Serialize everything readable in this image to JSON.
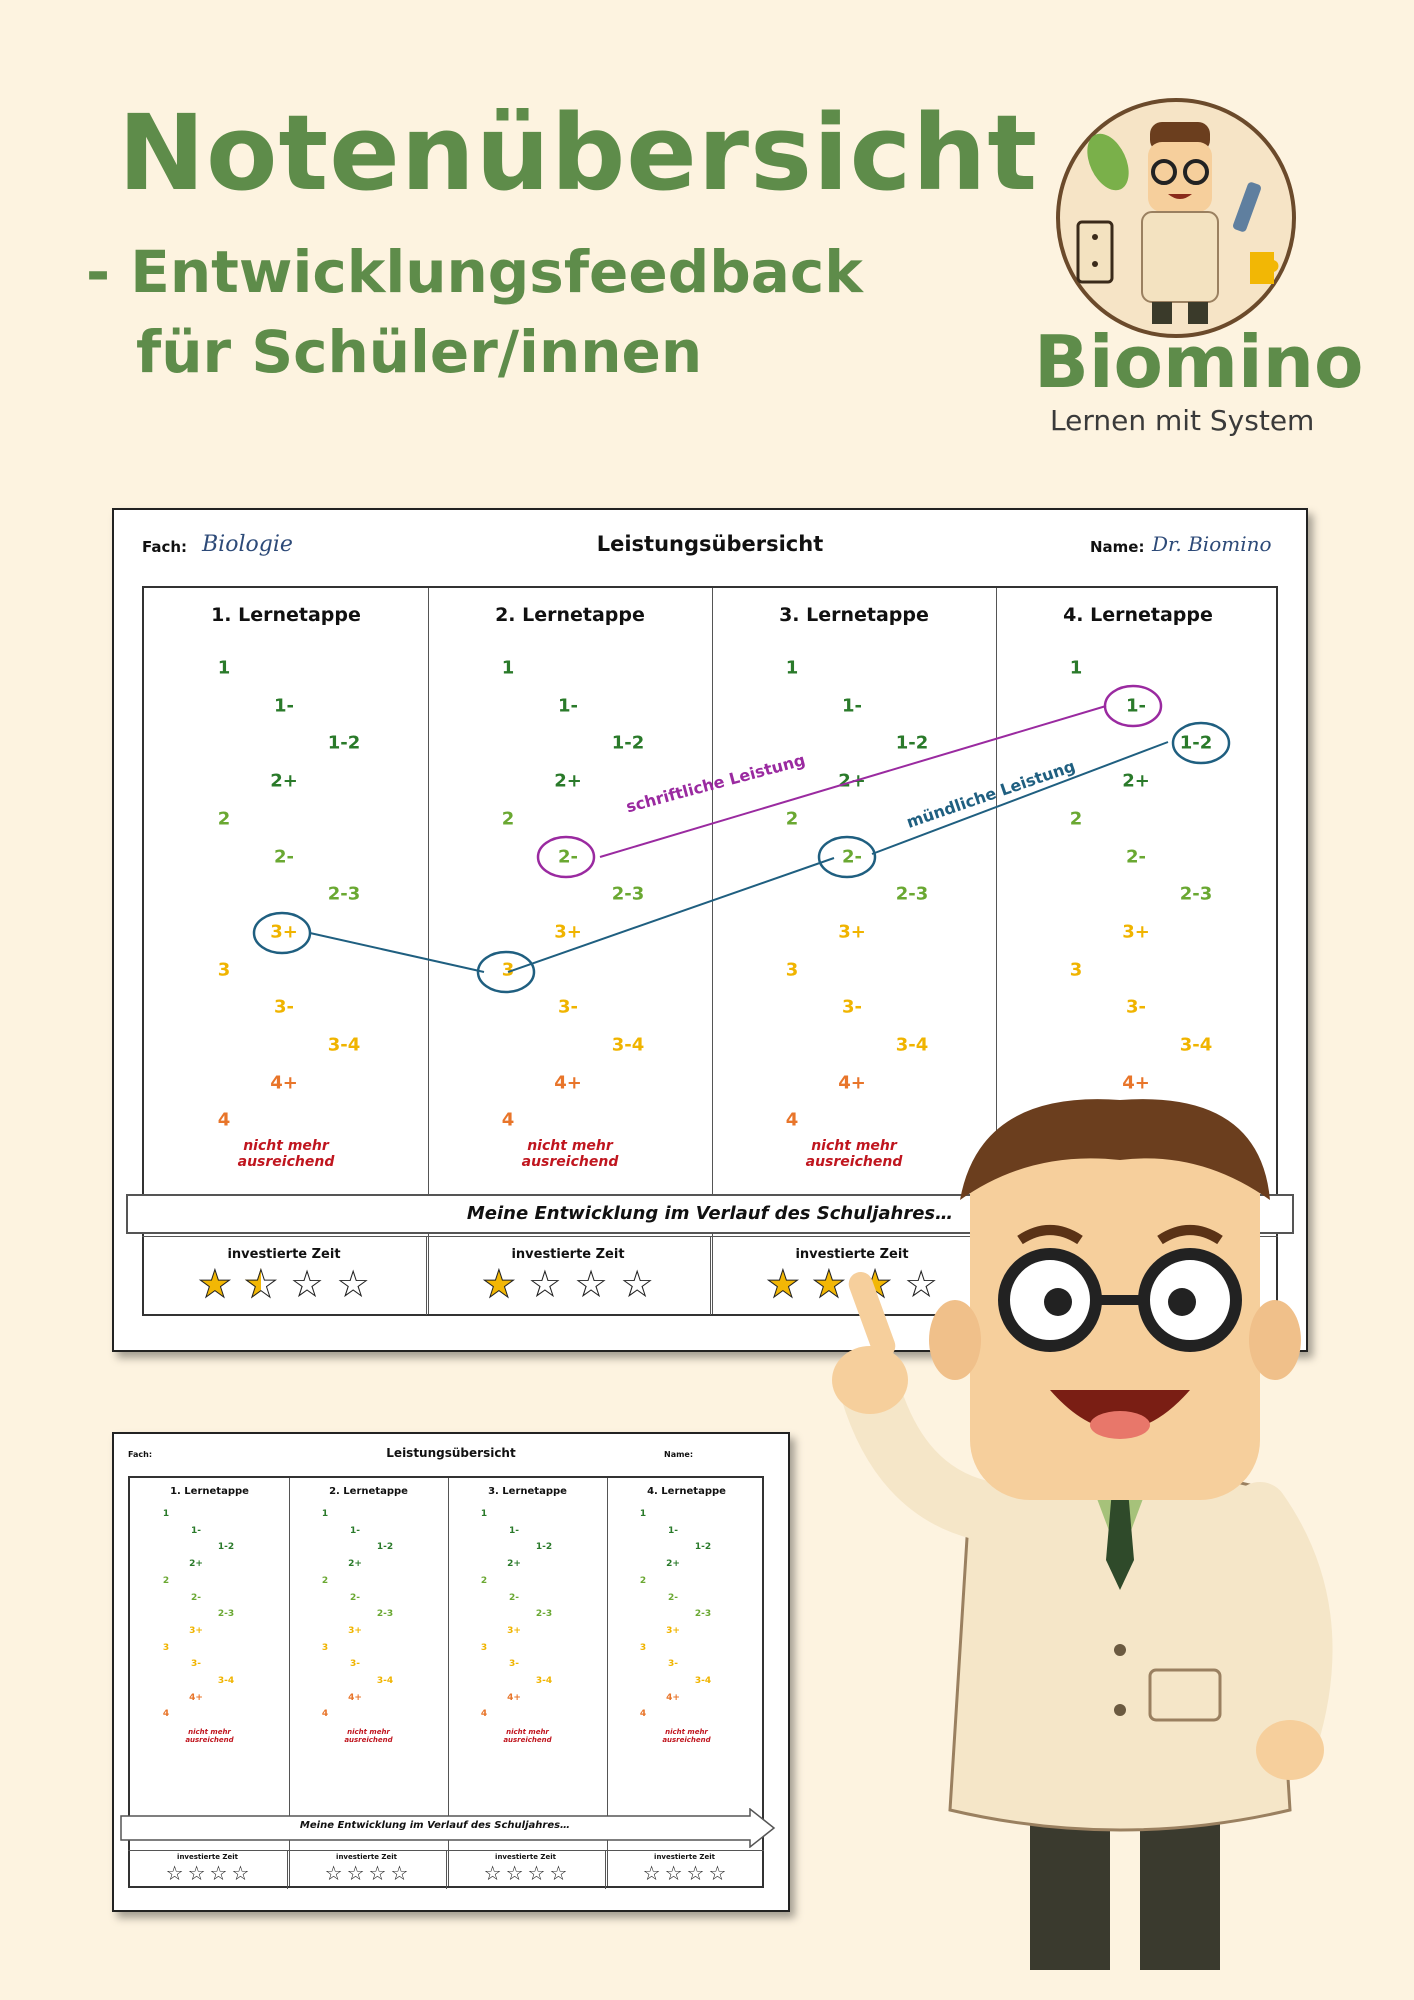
{
  "header": {
    "title": "Notenübersicht",
    "subtitle_line1": "- Entwicklungsfeedback",
    "subtitle_line2": "für Schüler/innen"
  },
  "brand": {
    "name": "Biomino",
    "slogan": "Lernen mit System"
  },
  "colors": {
    "brand_green": "#5e8c4a",
    "grade_1": "#2a7a2a",
    "grade_2": "#6aa832",
    "grade_3": "#f0b400",
    "grade_4": "#e8752a",
    "fail": "#c0161f",
    "written_line": "#9a2aa0",
    "oral_line": "#1f5f80"
  },
  "big_sheet": {
    "fach_label": "Fach:",
    "fach_value": "Biologie",
    "title": "Leistungsübersicht",
    "name_label": "Name:",
    "name_value": "Dr. Biomino",
    "banner": "Meine Entwicklung im Verlauf des Schuljahres…",
    "stars_label": "investierte Zeit",
    "written_label": "schriftliche Leistung",
    "oral_label": "mündliche Leistung",
    "written_marks": [
      "2-",
      "1-"
    ],
    "oral_marks": [
      "3+",
      "3",
      "2-",
      "1-2"
    ],
    "star_ratings": [
      1.5,
      1,
      3
    ]
  },
  "small_sheet": {
    "fach_label": "Fach:",
    "title": "Leistungsübersicht",
    "name_label": "Name:",
    "banner": "Meine Entwicklung im Verlauf des Schuljahres…",
    "stars_label": "investierte Zeit"
  },
  "columns": [
    "1. Lernetappe",
    "2. Lernetappe",
    "3. Lernetappe",
    "4. Lernetappe"
  ],
  "grades": [
    "1",
    "1-",
    "1-2",
    "2+",
    "2",
    "2-",
    "2-3",
    "3+",
    "3",
    "3-",
    "3-4",
    "4+",
    "4"
  ],
  "fail_line1": "nicht mehr",
  "fail_line2": "ausreichend"
}
